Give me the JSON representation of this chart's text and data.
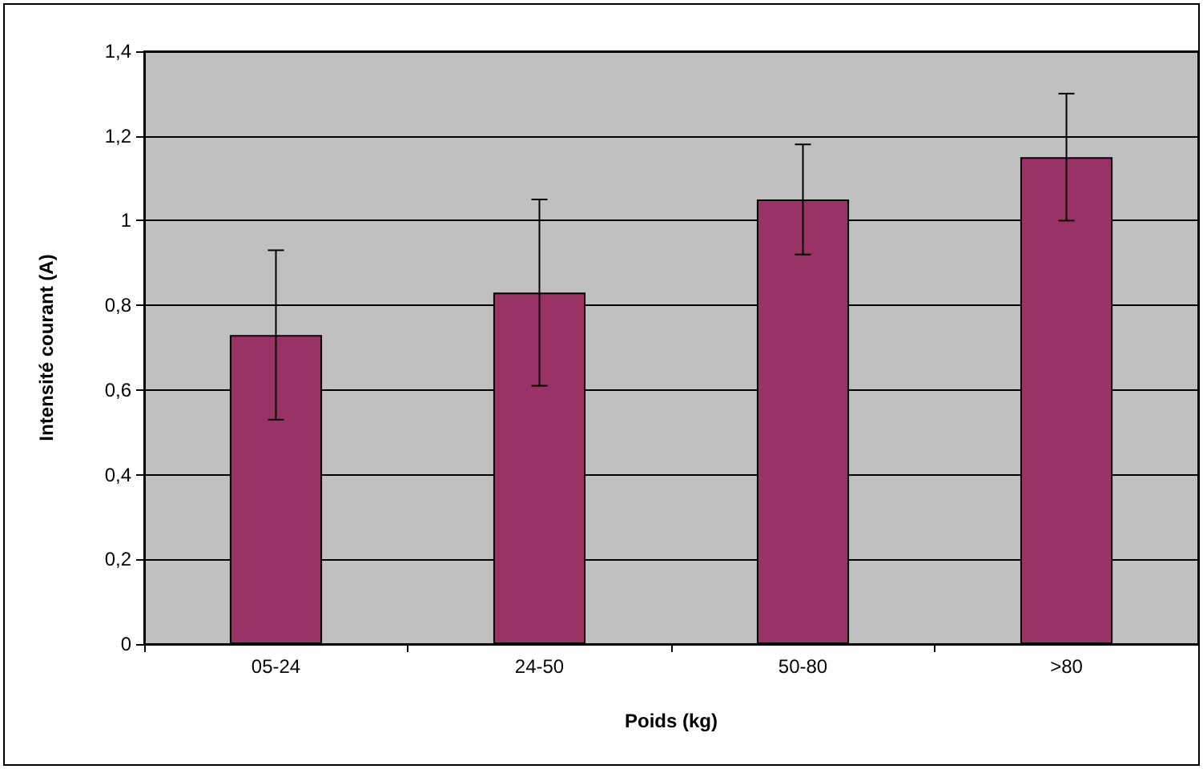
{
  "chart_data": {
    "type": "bar",
    "xlabel": "Poids (kg)",
    "ylabel": "Intensité courant (A)",
    "categories": [
      "05-24",
      "24-50",
      "50-80",
      ">80"
    ],
    "series": [
      {
        "color": "#993366",
        "values": [
          0.73,
          0.83,
          1.05,
          1.15
        ],
        "errors": [
          [
            0.53,
            0.93
          ],
          [
            0.61,
            1.05
          ],
          [
            0.92,
            1.18
          ],
          [
            1.0,
            1.3
          ]
        ]
      }
    ],
    "ylim": [
      0,
      1.4
    ],
    "yticks": [
      {
        "value": 0,
        "label": "0"
      },
      {
        "value": 0.2,
        "label": "0,2"
      },
      {
        "value": 0.4,
        "label": "0,4"
      },
      {
        "value": 0.6,
        "label": "0,6"
      },
      {
        "value": 0.8,
        "label": "0,8"
      },
      {
        "value": 1,
        "label": "1"
      },
      {
        "value": 1.2,
        "label": "1,2"
      },
      {
        "value": 1.4,
        "label": "1,4"
      }
    ],
    "grid": "y"
  }
}
